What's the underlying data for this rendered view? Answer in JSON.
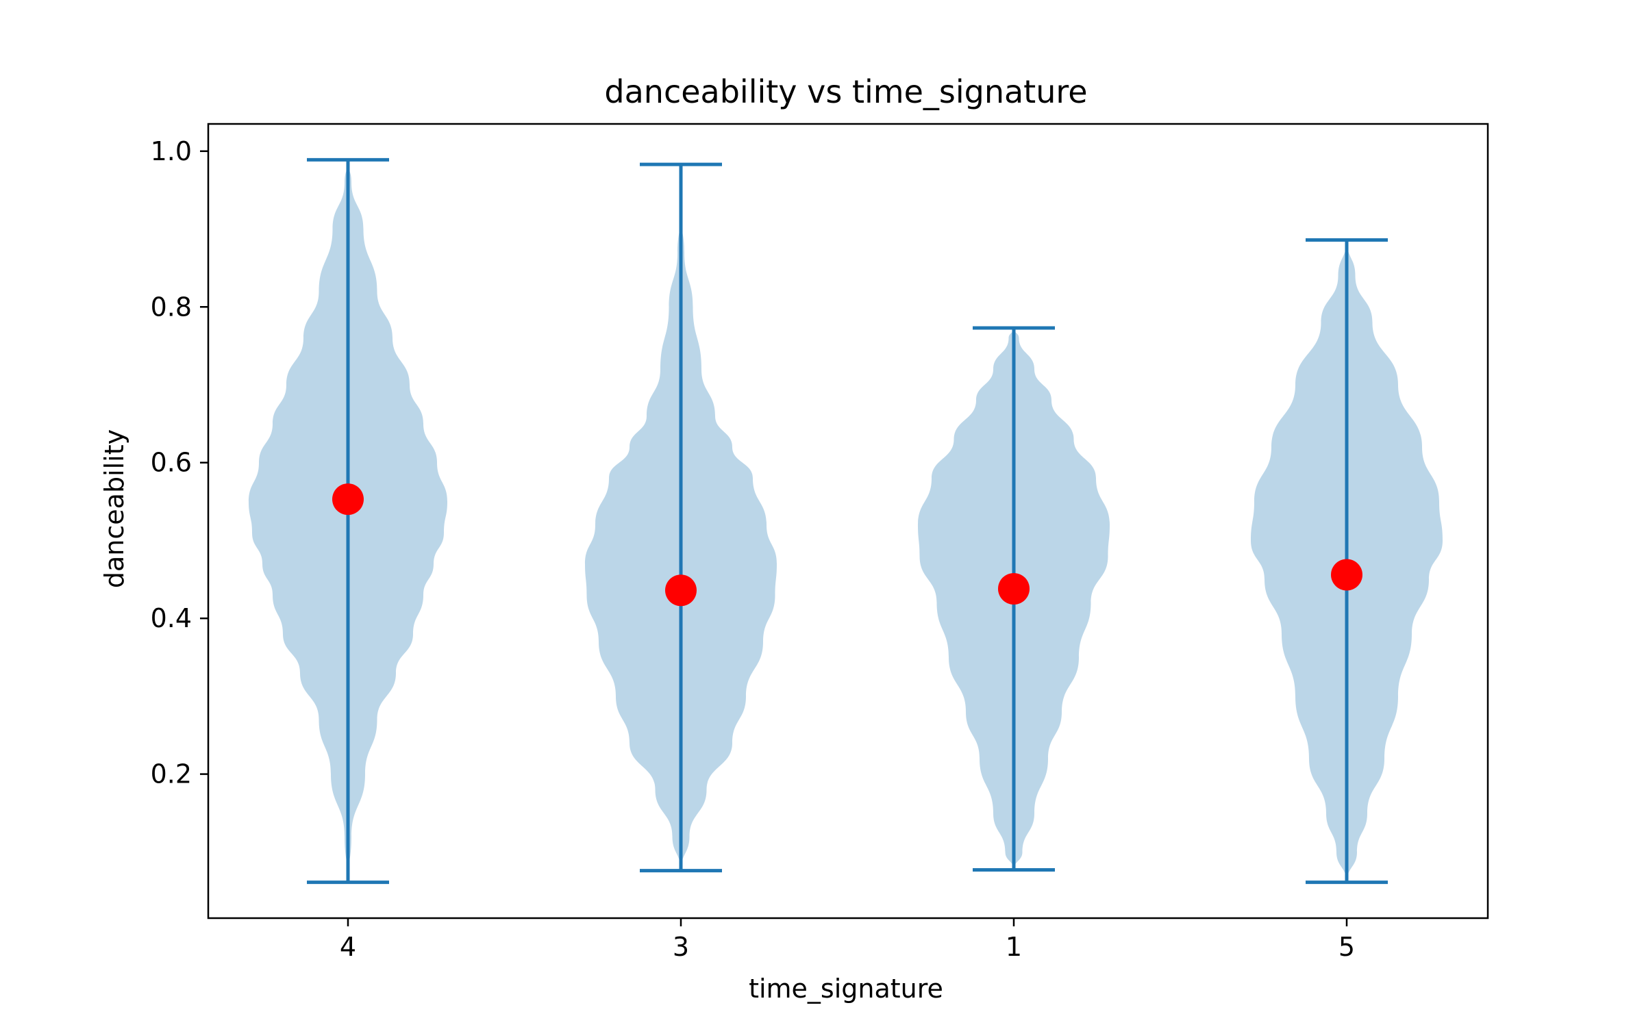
{
  "chart_data": {
    "type": "violin",
    "title": "danceability vs time_signature",
    "xlabel": "time_signature",
    "ylabel": "danceability",
    "categories": [
      "4",
      "3",
      "1",
      "5"
    ],
    "ylim": [
      0.015,
      1.035
    ],
    "yticks": [
      0.2,
      0.4,
      0.6,
      0.8,
      1.0
    ],
    "ytick_labels": [
      "0.2",
      "0.4",
      "0.6",
      "0.8",
      "1.0"
    ],
    "grid": false,
    "colors": {
      "violin_fill": "#1f77b4",
      "violin_line": "#1f77b4",
      "mean_marker": "#ff0000",
      "axes": "#000000"
    },
    "violins": [
      {
        "category": "4",
        "min": 0.061,
        "max": 0.989,
        "mean": 0.553,
        "density": [
          [
            0.061,
            0.0
          ],
          [
            0.12,
            0.02
          ],
          [
            0.2,
            0.1
          ],
          [
            0.27,
            0.17
          ],
          [
            0.33,
            0.28
          ],
          [
            0.38,
            0.38
          ],
          [
            0.43,
            0.44
          ],
          [
            0.47,
            0.5
          ],
          [
            0.51,
            0.56
          ],
          [
            0.55,
            0.58
          ],
          [
            0.6,
            0.52
          ],
          [
            0.65,
            0.44
          ],
          [
            0.7,
            0.36
          ],
          [
            0.76,
            0.26
          ],
          [
            0.82,
            0.17
          ],
          [
            0.9,
            0.09
          ],
          [
            0.96,
            0.02
          ],
          [
            0.989,
            0.0
          ]
        ]
      },
      {
        "category": "3",
        "min": 0.076,
        "max": 0.983,
        "mean": 0.436,
        "density": [
          [
            0.076,
            0.0
          ],
          [
            0.12,
            0.05
          ],
          [
            0.18,
            0.15
          ],
          [
            0.24,
            0.3
          ],
          [
            0.3,
            0.38
          ],
          [
            0.37,
            0.48
          ],
          [
            0.43,
            0.55
          ],
          [
            0.47,
            0.56
          ],
          [
            0.52,
            0.5
          ],
          [
            0.58,
            0.42
          ],
          [
            0.62,
            0.3
          ],
          [
            0.66,
            0.2
          ],
          [
            0.72,
            0.12
          ],
          [
            0.8,
            0.07
          ],
          [
            0.87,
            0.02
          ],
          [
            0.92,
            0.0
          ],
          [
            0.983,
            0.0
          ]
        ]
      },
      {
        "category": "1",
        "min": 0.077,
        "max": 0.773,
        "mean": 0.438,
        "density": [
          [
            0.077,
            0.0
          ],
          [
            0.1,
            0.05
          ],
          [
            0.15,
            0.12
          ],
          [
            0.22,
            0.2
          ],
          [
            0.28,
            0.28
          ],
          [
            0.35,
            0.38
          ],
          [
            0.42,
            0.45
          ],
          [
            0.48,
            0.55
          ],
          [
            0.52,
            0.56
          ],
          [
            0.58,
            0.48
          ],
          [
            0.63,
            0.35
          ],
          [
            0.68,
            0.22
          ],
          [
            0.72,
            0.12
          ],
          [
            0.76,
            0.03
          ],
          [
            0.773,
            0.0
          ]
        ]
      },
      {
        "category": "5",
        "min": 0.061,
        "max": 0.886,
        "mean": 0.456,
        "density": [
          [
            0.061,
            0.0
          ],
          [
            0.1,
            0.06
          ],
          [
            0.15,
            0.12
          ],
          [
            0.22,
            0.22
          ],
          [
            0.3,
            0.3
          ],
          [
            0.38,
            0.38
          ],
          [
            0.45,
            0.48
          ],
          [
            0.5,
            0.56
          ],
          [
            0.55,
            0.54
          ],
          [
            0.62,
            0.44
          ],
          [
            0.7,
            0.3
          ],
          [
            0.78,
            0.15
          ],
          [
            0.84,
            0.05
          ],
          [
            0.886,
            0.0
          ]
        ]
      }
    ]
  }
}
